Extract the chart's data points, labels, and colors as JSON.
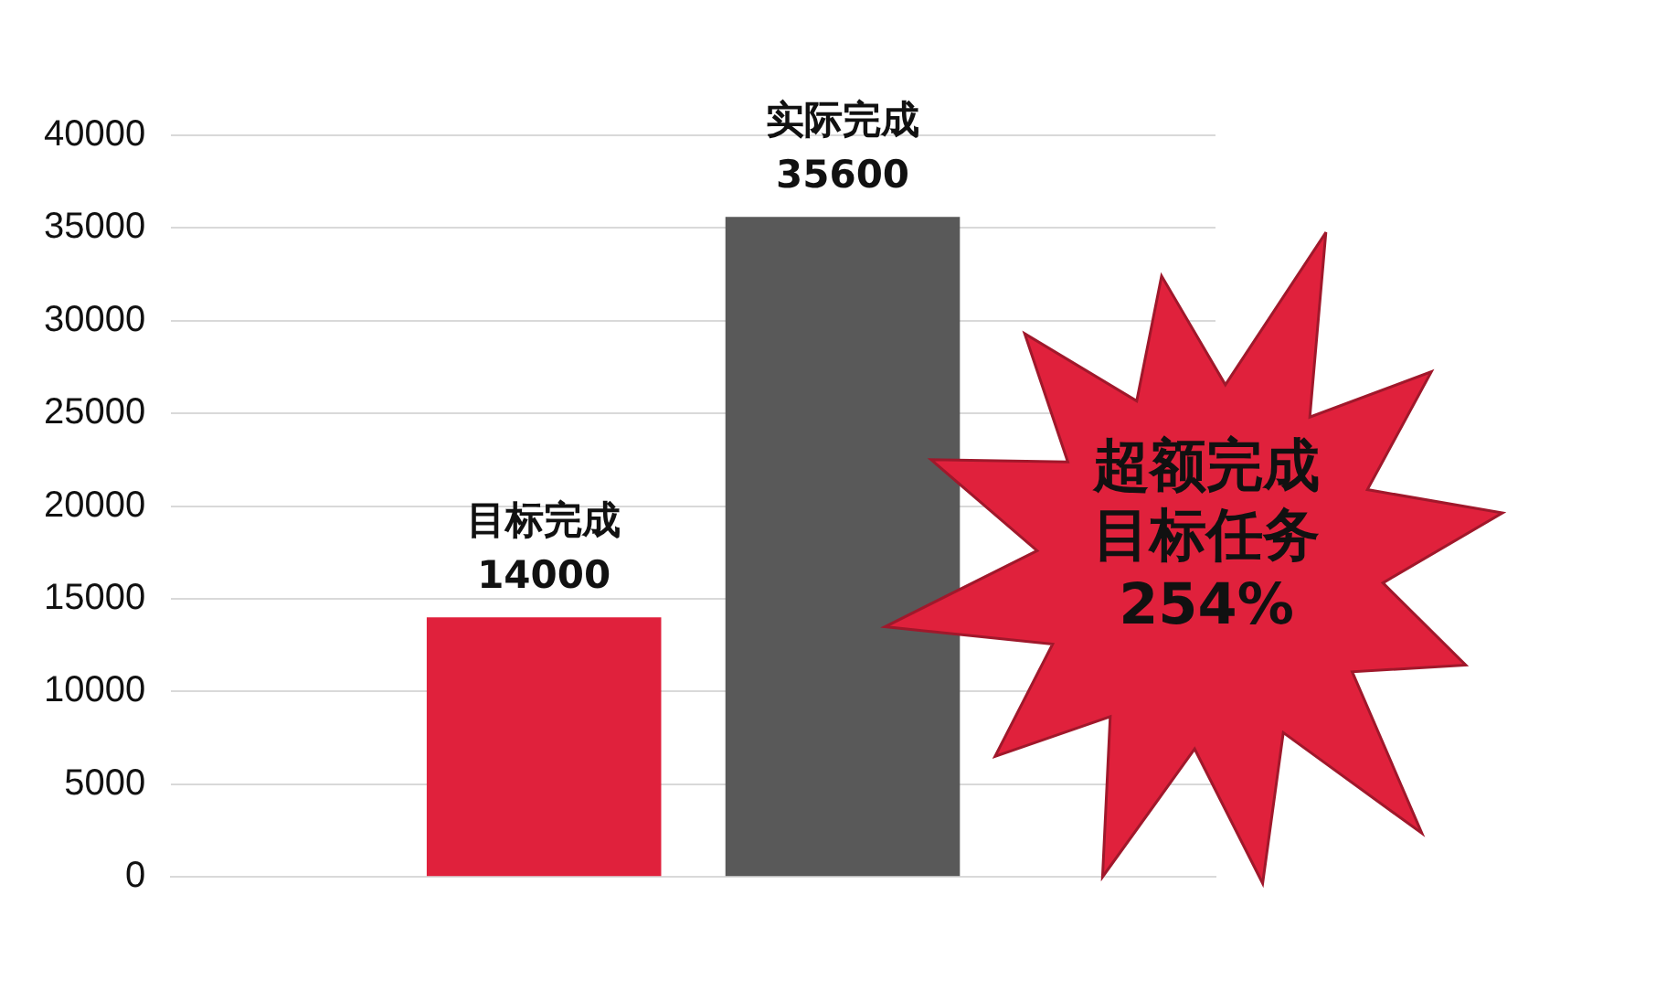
{
  "chart_data": {
    "type": "bar",
    "categories": [
      null
    ],
    "series": [
      {
        "name": "目标完成",
        "color": "#e0213c",
        "values": [
          14000
        ]
      },
      {
        "name": "实际完成",
        "color": "#595959",
        "values": [
          35600
        ]
      }
    ],
    "ylim": [
      0,
      40000
    ],
    "yticks": [
      0,
      5000,
      10000,
      15000,
      20000,
      25000,
      30000,
      35000,
      40000
    ],
    "grid": "y",
    "legend": false,
    "data_labels": true,
    "annotations": [
      "超额完成",
      "目标任务",
      "254%"
    ]
  }
}
